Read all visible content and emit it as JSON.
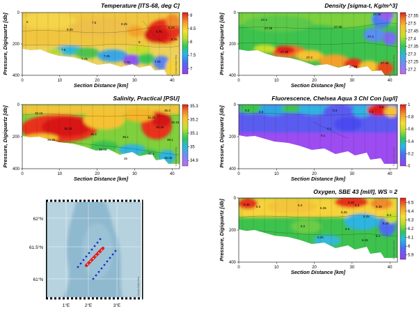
{
  "charts": [
    {
      "id": "temperature",
      "type": "heatmap",
      "title": "Temperature [ITS-68, deg C]",
      "xlabel": "Section Distance [km]",
      "ylabel": "Pressure, Digiquartz [db]",
      "xlim": [
        0,
        42
      ],
      "ylim": [
        400,
        0
      ],
      "xticks": [
        0,
        10,
        20,
        30,
        40
      ],
      "yticks": [
        0,
        200,
        400
      ],
      "colorbar": {
        "ticks": [
          9,
          8.5,
          8,
          7.5,
          7
        ],
        "min": 6.8,
        "max": 9.1,
        "scale": "thermal"
      },
      "contour_labels": [
        "6",
        "8.25",
        "7.5",
        "7.5",
        "7.75",
        "7.25",
        "7.75",
        "8.25",
        "8",
        "7.25",
        "8.75",
        "8.25",
        "8.25"
      ]
    },
    {
      "id": "density",
      "type": "heatmap",
      "title": "Density [sigma-t, Kg/m^3]",
      "xlabel": "Section Distance [km]",
      "ylabel": "Pressure, Digiquartz [db]",
      "xlim": [
        0,
        42
      ],
      "ylim": [
        400,
        0
      ],
      "xticks": [
        0,
        10,
        20,
        30,
        40
      ],
      "yticks": [
        0,
        200,
        400
      ],
      "colorbar": {
        "ticks": [
          27.55,
          27.5,
          27.45,
          27.4,
          27.35,
          27.3,
          27.25,
          27.2
        ],
        "min": 27.17,
        "max": 27.57,
        "scale": "haline"
      },
      "contour_labels": [
        "27.4",
        "27.35",
        "27.35",
        "27.25",
        "27.3",
        "27.25",
        "27.4",
        "27.35",
        "27.45"
      ]
    },
    {
      "id": "salinity",
      "type": "heatmap",
      "title": "Salinity, Practical [PSU]",
      "xlabel": "Section Distance [km]",
      "ylabel": "Pressure, Digiquartz [db]",
      "xlim": [
        0,
        42
      ],
      "ylim": [
        400,
        0
      ],
      "xticks": [
        0,
        10,
        20,
        30,
        40
      ],
      "yticks": [
        0,
        200,
        400
      ],
      "colorbar": {
        "ticks": [
          35.3,
          35.2,
          35.1,
          35,
          34.9
        ],
        "min": 34.86,
        "max": 35.31,
        "scale": "haline"
      },
      "contour_labels": [
        "35.15",
        "35.25",
        "35.25",
        "35.2",
        "35.15",
        "35.1",
        "35",
        "35.25",
        "35.25",
        "35.2",
        "35.1",
        "35.1",
        "35.05",
        "35.15"
      ]
    },
    {
      "id": "fluorescence",
      "type": "heatmap",
      "title": "Fluorescence, Chelsea Aqua 3 Chl Con [ug/l]",
      "xlabel": "Section Distance [km]",
      "ylabel": "Pressure, Digiquartz [db]",
      "xlim": [
        0,
        42
      ],
      "ylim": [
        400,
        0
      ],
      "xticks": [
        0,
        10,
        20,
        30,
        40
      ],
      "yticks": [
        0,
        200,
        400
      ],
      "colorbar": {
        "ticks": [
          1,
          0.8,
          0.6,
          0.4,
          0.2,
          0
        ],
        "min": 0,
        "max": 1,
        "scale": "thermal"
      },
      "contour_labels": [
        "0.2",
        "0.3",
        "0.1",
        "0.1",
        "0.3",
        "0.2",
        "0.5"
      ]
    },
    {
      "id": "oxygen",
      "type": "heatmap",
      "title": "Oxygen, SBE 43 [ml/l], WS = 2",
      "xlabel": "Section Distance [km]",
      "ylabel": "Pressure, Digiquartz [db]",
      "xlim": [
        0,
        42
      ],
      "ylim": [
        400,
        0
      ],
      "xticks": [
        0,
        10,
        20,
        30,
        40
      ],
      "yticks": [
        0,
        200,
        400
      ],
      "colorbar": {
        "ticks": [
          6.5,
          6.4,
          6.3,
          6.2,
          6.1,
          6,
          5.9
        ],
        "min": 5.85,
        "max": 6.55,
        "scale": "thermal"
      },
      "contour_labels": [
        "6.35",
        "6.3",
        "6.3",
        "6.35",
        "6.2",
        "6.25",
        "6.25",
        "6.3",
        "6.35",
        "6.45",
        "6.25",
        "6.2",
        "6.15",
        "6.1",
        "6.15",
        "6.2"
      ]
    }
  ],
  "map": {
    "lat_labels": [
      "62°N",
      "61.5°N",
      "61°N"
    ],
    "lon_labels": [
      "1°E",
      "2°E",
      "3°E"
    ],
    "credit": "Ocean Data View"
  },
  "credit": "Ocean Data View"
}
